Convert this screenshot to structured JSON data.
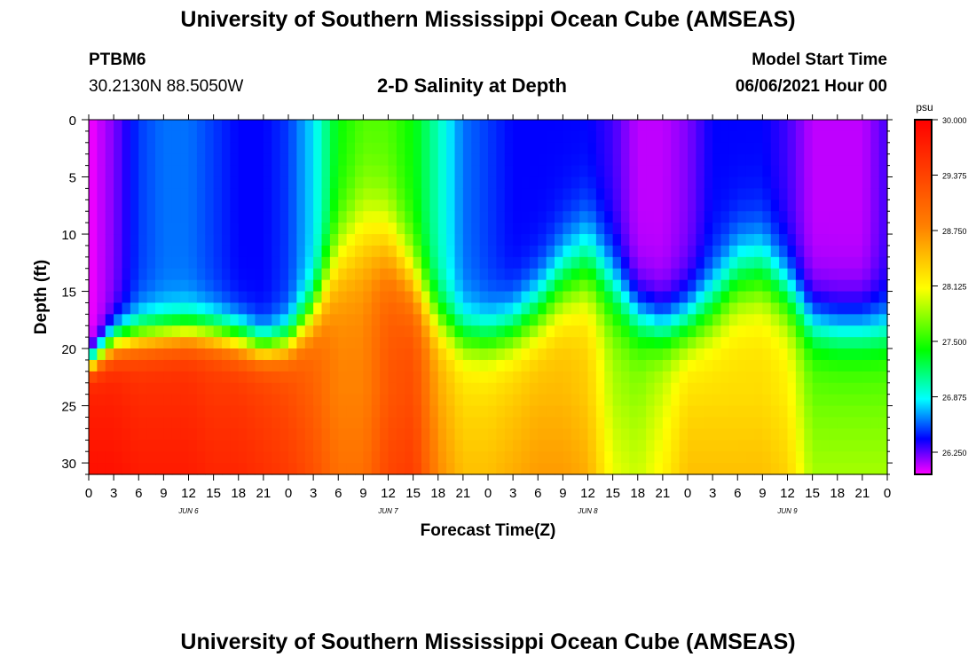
{
  "title_top": "University of Southern Mississippi Ocean Cube (AMSEAS)",
  "title_bottom": "University of Southern Mississippi Ocean Cube (AMSEAS)",
  "station": {
    "id": "PTBM6",
    "coords": "30.2130N  88.5050W"
  },
  "plot_title": "2-D Salinity at Depth",
  "model_start": {
    "label": "Model Start Time",
    "value": "06/06/2021 Hour 00"
  },
  "chart_data": {
    "type": "heatmap",
    "title": "2-D Salinity at Depth",
    "xlabel": "Forecast Time(Z)",
    "ylabel": "Depth (ft)",
    "x_range_hours": [
      0,
      96
    ],
    "y_range_ft": [
      0,
      31
    ],
    "y_ticks": [
      "0",
      "5",
      "10",
      "15",
      "20",
      "25",
      "30"
    ],
    "y_tick_values": [
      0,
      5,
      10,
      15,
      20,
      25,
      30
    ],
    "x_tick_labels": [
      "0",
      "3",
      "6",
      "9",
      "12",
      "15",
      "18",
      "21",
      "0",
      "3",
      "6",
      "9",
      "12",
      "15",
      "18",
      "21",
      "0",
      "3",
      "6",
      "9",
      "12",
      "15",
      "18",
      "21",
      "0",
      "3",
      "6",
      "9",
      "12",
      "15",
      "18",
      "21",
      "0"
    ],
    "day_labels": [
      "JUN 6",
      "JUN 7",
      "JUN 8",
      "JUN 9"
    ],
    "colorbar": {
      "unit": "psu",
      "min": 26.0,
      "max": 30.0,
      "labels": [
        "30.000",
        "29.375",
        "28.750",
        "28.125",
        "27.500",
        "26.875",
        "26.250"
      ],
      "label_values": [
        30.0,
        29.375,
        28.75,
        28.125,
        27.5,
        26.875,
        26.25
      ],
      "stops": [
        {
          "value": 26.0,
          "color": "#ff00ff"
        },
        {
          "value": 26.4,
          "color": "#0000ff"
        },
        {
          "value": 26.85,
          "color": "#00ffff"
        },
        {
          "value": 27.4,
          "color": "#00ff00"
        },
        {
          "value": 28.1,
          "color": "#ffff00"
        },
        {
          "value": 28.8,
          "color": "#ff8000"
        },
        {
          "value": 30.0,
          "color": "#ff0000"
        }
      ]
    },
    "profiles": {
      "times_hours": [
        0,
        3,
        6,
        9,
        12,
        15,
        18,
        21,
        24,
        27,
        30,
        33,
        36,
        39,
        42,
        45,
        48,
        51,
        54,
        57,
        60,
        63,
        66,
        69,
        72,
        75,
        78,
        81,
        84,
        87,
        90,
        93,
        96
      ],
      "surface_psu": [
        26.0,
        26.2,
        26.5,
        26.6,
        26.6,
        26.5,
        26.4,
        26.4,
        26.5,
        26.8,
        27.4,
        27.6,
        27.6,
        27.4,
        27.0,
        26.6,
        26.5,
        26.4,
        26.4,
        26.4,
        26.4,
        26.3,
        26.1,
        26.1,
        26.2,
        26.4,
        26.4,
        26.4,
        26.3,
        26.1,
        26.1,
        26.1,
        26.3
      ],
      "bottom_psu": [
        29.7,
        29.7,
        29.6,
        29.6,
        29.6,
        29.5,
        29.5,
        29.4,
        29.3,
        29.1,
        28.8,
        28.8,
        29.2,
        29.3,
        28.6,
        28.3,
        28.3,
        28.4,
        28.5,
        28.5,
        28.4,
        27.9,
        27.8,
        28.0,
        28.3,
        28.3,
        28.3,
        28.3,
        28.2,
        27.7,
        27.7,
        27.7,
        27.7
      ],
      "halocline_depth_ft": [
        21.5,
        19.5,
        19.0,
        18.8,
        18.6,
        18.8,
        19.3,
        20.0,
        19.5,
        17.0,
        12.0,
        10.0,
        11.0,
        14.0,
        17.5,
        19.0,
        19.2,
        18.5,
        17.0,
        14.5,
        13.0,
        15.0,
        17.5,
        18.5,
        18.0,
        16.5,
        14.0,
        13.5,
        15.5,
        18.0,
        18.5,
        18.5,
        18.5
      ],
      "halocline_thickness_ft": [
        2.5,
        4.0,
        4.5,
        4.5,
        4.5,
        4.5,
        4.5,
        4.0,
        4.5,
        6.0,
        10.0,
        12.0,
        11.0,
        9.0,
        6.5,
        6.0,
        6.0,
        6.5,
        7.5,
        9.0,
        10.0,
        9.0,
        7.0,
        6.5,
        7.0,
        8.0,
        9.0,
        9.0,
        8.0,
        7.0,
        7.0,
        7.0,
        7.0
      ]
    }
  }
}
